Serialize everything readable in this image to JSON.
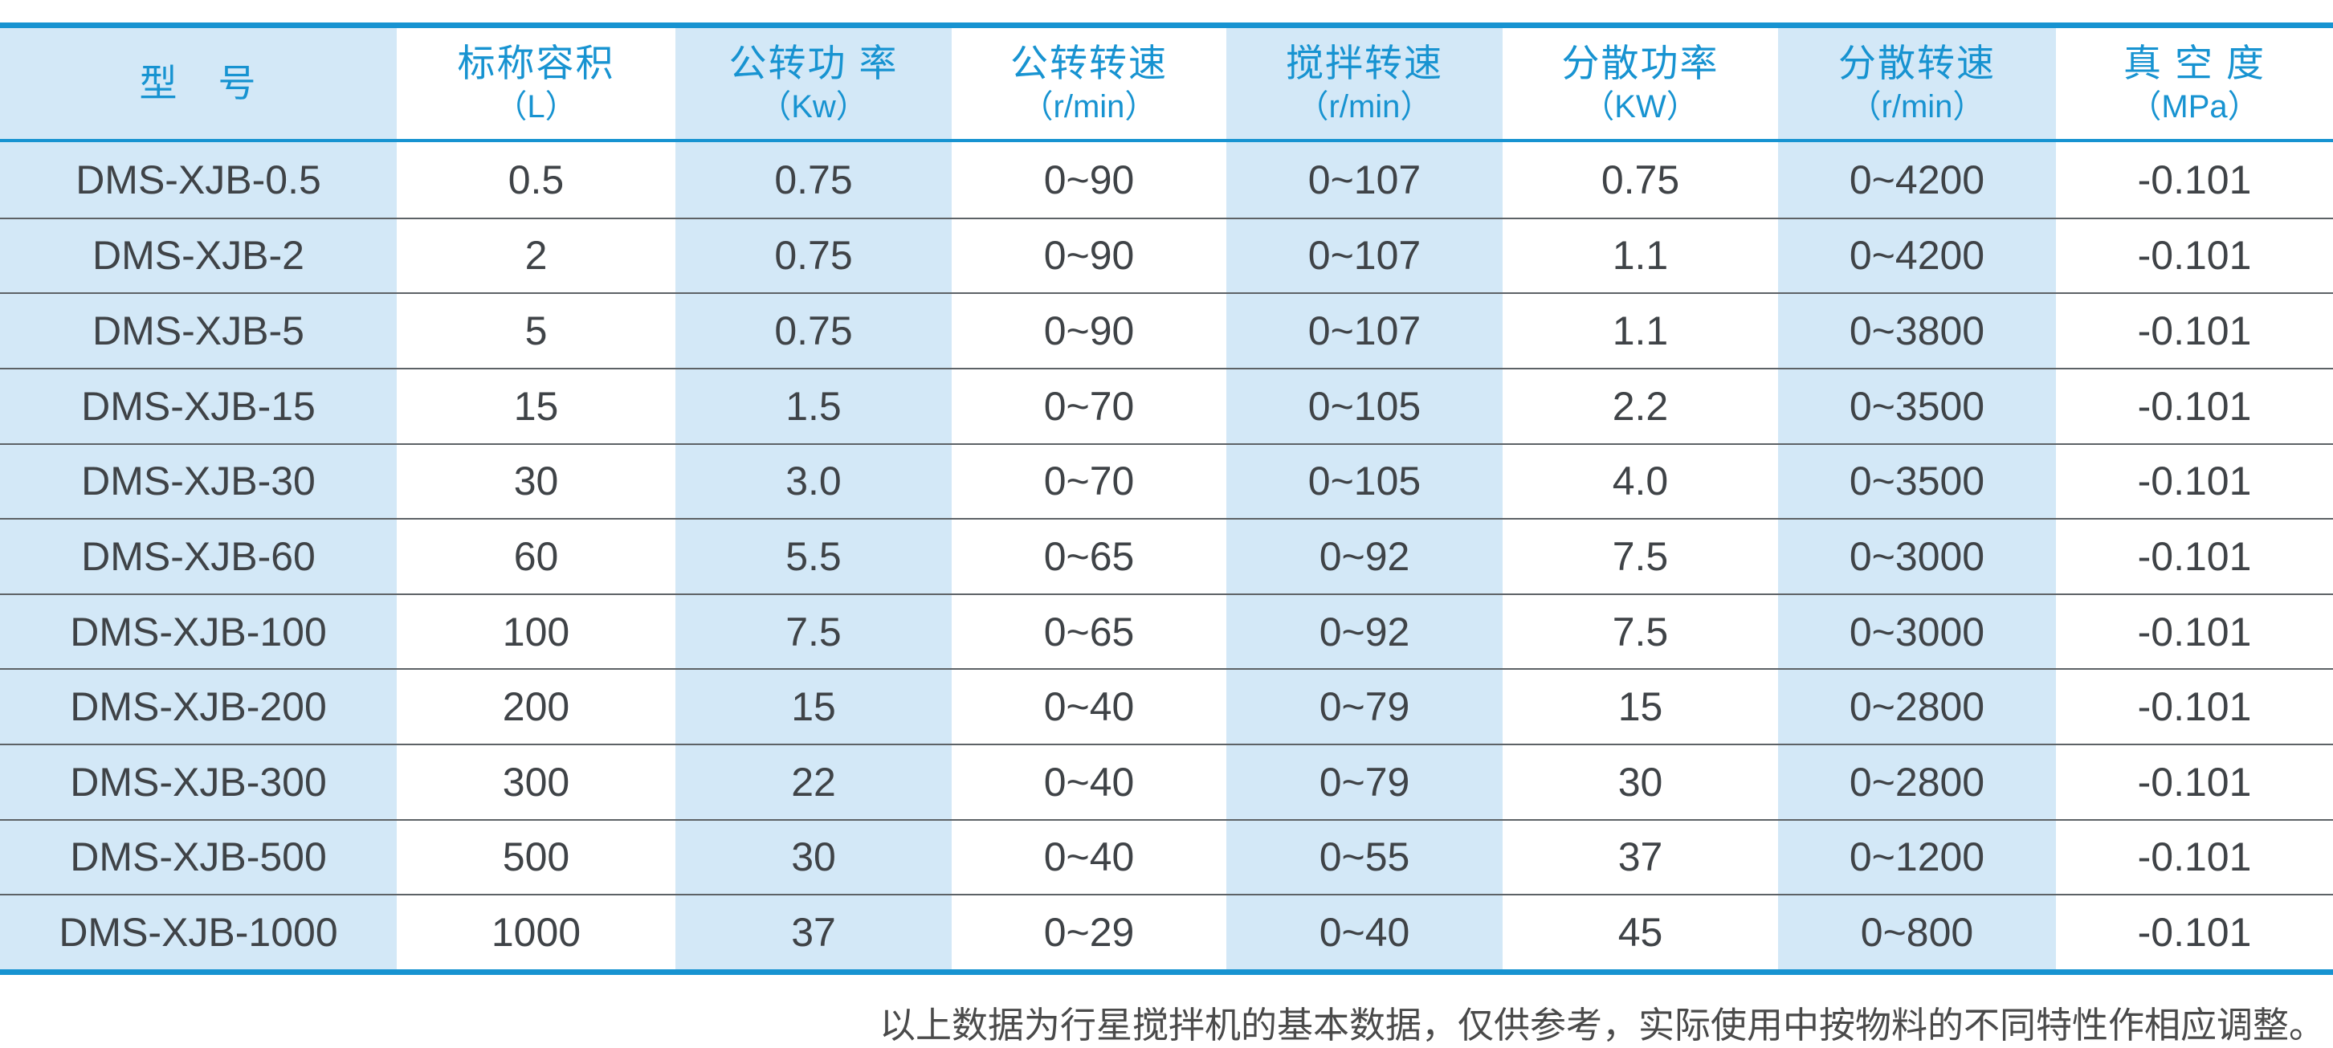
{
  "colors": {
    "accent_blue": "#1793d1",
    "light_blue_band": "#d3e8f7",
    "data_text": "#3f4347",
    "row_separator": "#5d6266",
    "note_text": "#4a4a4a"
  },
  "table": {
    "columns": [
      {
        "label": "型　号",
        "unit": ""
      },
      {
        "label": "标称容积",
        "unit": "（L）"
      },
      {
        "label": "公转功 率",
        "unit": "（Kw）"
      },
      {
        "label": "公转转速",
        "unit": "（r/min）"
      },
      {
        "label": "搅拌转速",
        "unit": "（r/min）"
      },
      {
        "label": "分散功率",
        "unit": "（KW）"
      },
      {
        "label": "分散转速",
        "unit": "（r/min）"
      },
      {
        "label": "真 空 度",
        "unit": "（MPa）"
      }
    ],
    "rows": [
      {
        "cells": [
          "DMS-XJB-0.5",
          "0.5",
          "0.75",
          "0~90",
          "0~107",
          "0.75",
          "0~4200",
          "-0.101"
        ]
      },
      {
        "cells": [
          "DMS-XJB-2",
          "2",
          "0.75",
          "0~90",
          "0~107",
          "1.1",
          "0~4200",
          "-0.101"
        ]
      },
      {
        "cells": [
          "DMS-XJB-5",
          "5",
          "0.75",
          "0~90",
          "0~107",
          "1.1",
          "0~3800",
          "-0.101"
        ]
      },
      {
        "cells": [
          "DMS-XJB-15",
          "15",
          "1.5",
          "0~70",
          "0~105",
          "2.2",
          "0~3500",
          "-0.101"
        ]
      },
      {
        "cells": [
          "DMS-XJB-30",
          "30",
          "3.0",
          "0~70",
          "0~105",
          "4.0",
          "0~3500",
          "-0.101"
        ]
      },
      {
        "cells": [
          "DMS-XJB-60",
          "60",
          "5.5",
          "0~65",
          "0~92",
          "7.5",
          "0~3000",
          "-0.101"
        ]
      },
      {
        "cells": [
          "DMS-XJB-100",
          "100",
          "7.5",
          "0~65",
          "0~92",
          "7.5",
          "0~3000",
          "-0.101"
        ]
      },
      {
        "cells": [
          "DMS-XJB-200",
          "200",
          "15",
          "0~40",
          "0~79",
          "15",
          "0~2800",
          "-0.101"
        ]
      },
      {
        "cells": [
          "DMS-XJB-300",
          "300",
          "22",
          "0~40",
          "0~79",
          "30",
          "0~2800",
          "-0.101"
        ]
      },
      {
        "cells": [
          "DMS-XJB-500",
          "500",
          "30",
          "0~40",
          "0~55",
          "37",
          "0~1200",
          "-0.101"
        ]
      },
      {
        "cells": [
          "DMS-XJB-1000",
          "1000",
          "37",
          "0~29",
          "0~40",
          "45",
          "0~800",
          "-0.101"
        ]
      }
    ]
  },
  "footer": {
    "note": "以上数据为行星搅拌机的基本数据，仅供参考，实际使用中按物料的不同特性作相应调整。"
  }
}
